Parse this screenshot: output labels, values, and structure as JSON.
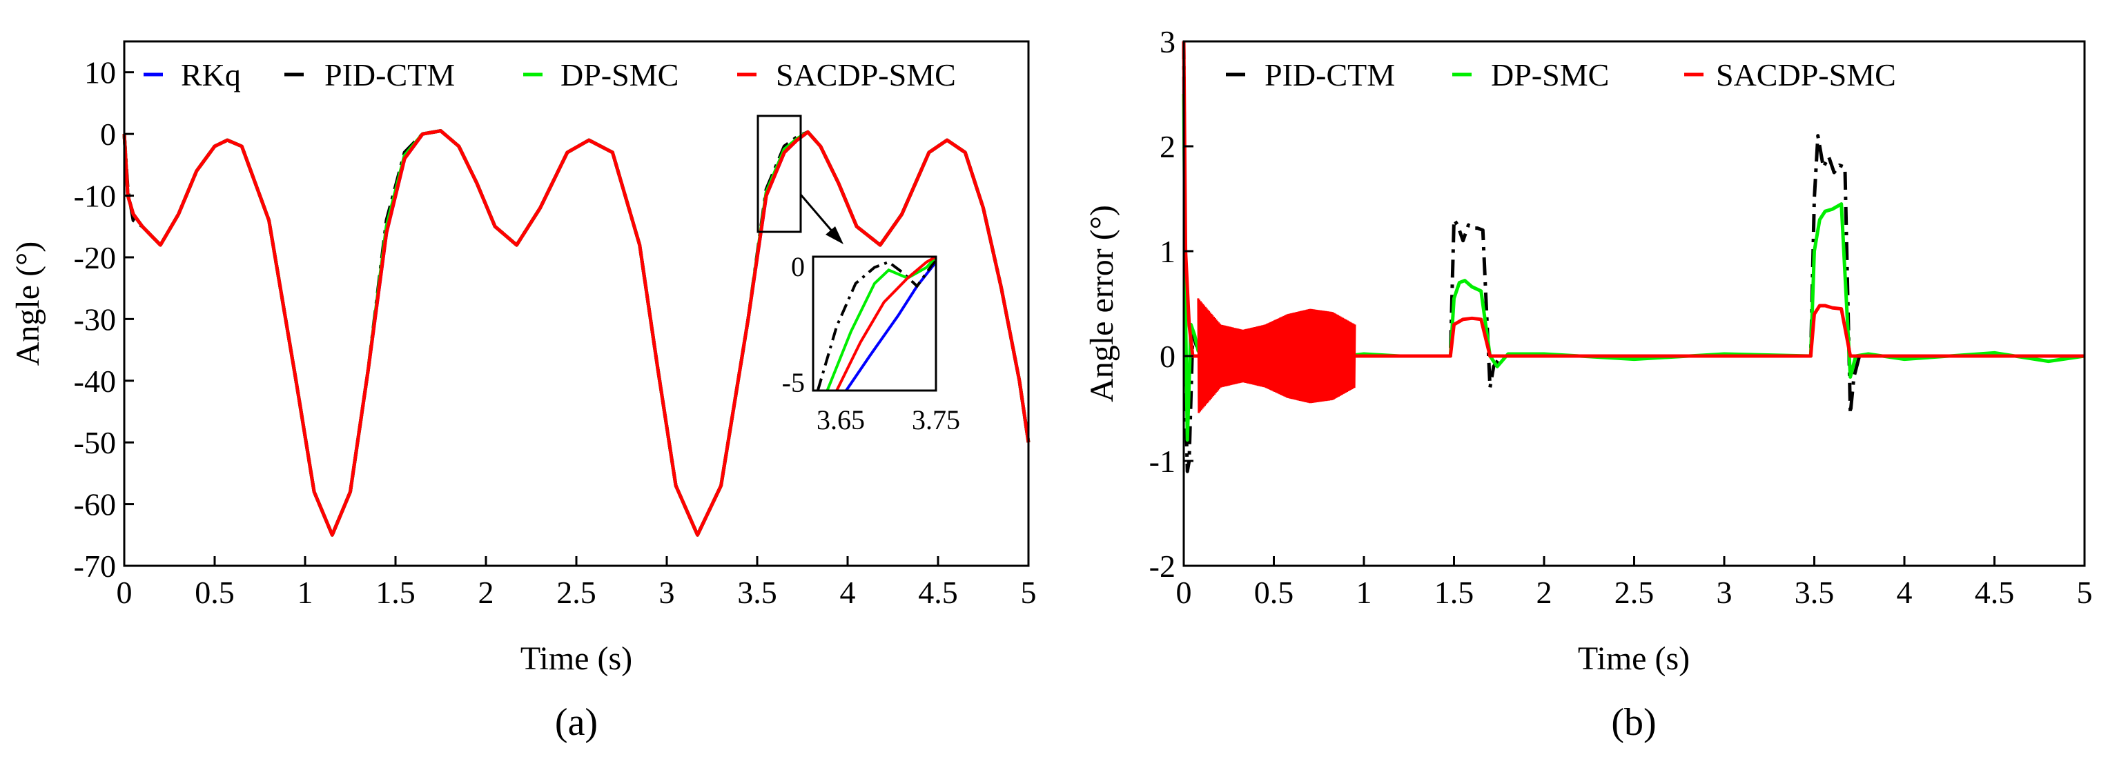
{
  "chart_data": [
    {
      "type": "line",
      "panel_label": "(a)",
      "xlabel": "Time (s)",
      "ylabel": "Angle (°)",
      "xlim": [
        0,
        5
      ],
      "ylim": [
        -70,
        15
      ],
      "xticks": [
        0,
        0.5,
        1,
        1.5,
        2,
        2.5,
        3,
        3.5,
        4,
        4.5,
        5
      ],
      "xtick_labels": [
        "0",
        "0.5",
        "1",
        "1.5",
        "2",
        "2.5",
        "3",
        "3.5",
        "4",
        "4.5",
        "5"
      ],
      "yticks": [
        10,
        0,
        -10,
        -20,
        -30,
        -40,
        -50,
        -60,
        -70
      ],
      "ytick_labels": [
        "10",
        "0",
        "-10",
        "-20",
        "-30",
        "-40",
        "-50",
        "-60",
        "-70"
      ],
      "legend_position": "top",
      "grid": false,
      "series": [
        {
          "name": "RKq",
          "color": "#0000ff",
          "dash": "solid",
          "x": [
            0,
            0.02,
            0.05,
            0.1,
            0.2,
            0.3,
            0.4,
            0.5,
            0.57,
            0.65,
            0.8,
            0.95,
            1.05,
            1.15,
            1.25,
            1.35,
            1.45,
            1.55,
            1.65,
            1.75,
            1.85,
            1.95,
            2.05,
            2.17,
            2.3,
            2.45,
            2.57,
            2.7,
            2.85,
            2.95,
            3.05,
            3.17,
            3.3,
            3.45,
            3.55,
            3.65,
            3.72,
            3.78,
            3.85,
            3.95,
            4.05,
            4.18,
            4.3,
            4.45,
            4.55,
            4.65,
            4.75,
            4.85,
            4.95,
            5.0
          ],
          "y": [
            0,
            -10,
            -13,
            -15,
            -18,
            -13,
            -6,
            -2,
            -1,
            -2,
            -14,
            -40,
            -58,
            -65,
            -58,
            -38,
            -16,
            -4,
            0,
            0.5,
            -2,
            -8,
            -15,
            -18,
            -12,
            -3,
            -1,
            -3,
            -18,
            -38,
            -57,
            -65,
            -57,
            -30,
            -10,
            -3,
            -1,
            0.3,
            -2,
            -8,
            -15,
            -18,
            -13,
            -3,
            -1,
            -3,
            -12,
            -25,
            -40,
            -50
          ]
        },
        {
          "name": "PID-CTM",
          "color": "#000000",
          "dash": "dashdot",
          "x": [
            0,
            0.02,
            0.05,
            0.1,
            0.2,
            0.3,
            0.4,
            0.5,
            0.57,
            0.65,
            0.8,
            0.95,
            1.05,
            1.15,
            1.25,
            1.35,
            1.45,
            1.55,
            1.65,
            1.75,
            1.85,
            1.95,
            2.05,
            2.17,
            2.3,
            2.45,
            2.57,
            2.7,
            2.85,
            2.95,
            3.05,
            3.17,
            3.3,
            3.45,
            3.55,
            3.65,
            3.72,
            3.78,
            3.85,
            3.95,
            4.05,
            4.18,
            4.3,
            4.45,
            4.55,
            4.65,
            4.75,
            4.85,
            4.95,
            5.0
          ],
          "y": [
            0,
            -9,
            -14,
            -15,
            -18,
            -13,
            -6,
            -2,
            -1,
            -2,
            -14,
            -40,
            -58,
            -65,
            -58,
            -38,
            -14,
            -3,
            0,
            0.5,
            -2,
            -8,
            -15,
            -18,
            -12,
            -3,
            -1,
            -3,
            -18,
            -38,
            -57,
            -65,
            -57,
            -30,
            -9,
            -2,
            -0.5,
            0.3,
            -2,
            -8,
            -15,
            -18,
            -13,
            -3,
            -1,
            -3,
            -12,
            -25,
            -40,
            -50
          ]
        },
        {
          "name": "DP-SMC",
          "color": "#00ee00",
          "dash": "solid",
          "x": [
            0,
            0.02,
            0.05,
            0.1,
            0.2,
            0.3,
            0.4,
            0.5,
            0.57,
            0.65,
            0.8,
            0.95,
            1.05,
            1.15,
            1.25,
            1.35,
            1.45,
            1.55,
            1.65,
            1.75,
            1.85,
            1.95,
            2.05,
            2.17,
            2.3,
            2.45,
            2.57,
            2.7,
            2.85,
            2.95,
            3.05,
            3.17,
            3.3,
            3.45,
            3.55,
            3.65,
            3.72,
            3.78,
            3.85,
            3.95,
            4.05,
            4.18,
            4.3,
            4.45,
            4.55,
            4.65,
            4.75,
            4.85,
            4.95,
            5.0
          ],
          "y": [
            0,
            -10,
            -13,
            -15,
            -18,
            -13,
            -6,
            -2,
            -1,
            -2,
            -14,
            -40,
            -58,
            -65,
            -58,
            -38,
            -15,
            -3.5,
            0,
            0.5,
            -2,
            -8,
            -15,
            -18,
            -12,
            -3,
            -1,
            -3,
            -18,
            -38,
            -57,
            -65,
            -57,
            -30,
            -9.5,
            -2.5,
            -0.8,
            0.3,
            -2,
            -8,
            -15,
            -18,
            -13,
            -3,
            -1,
            -3,
            -12,
            -25,
            -40,
            -50
          ]
        },
        {
          "name": "SACDP-SMC",
          "color": "#ff0000",
          "dash": "solid",
          "x": [
            0,
            0.02,
            0.05,
            0.1,
            0.2,
            0.3,
            0.4,
            0.5,
            0.57,
            0.65,
            0.8,
            0.95,
            1.05,
            1.15,
            1.25,
            1.35,
            1.45,
            1.55,
            1.65,
            1.75,
            1.85,
            1.95,
            2.05,
            2.17,
            2.3,
            2.45,
            2.57,
            2.7,
            2.85,
            2.95,
            3.05,
            3.17,
            3.3,
            3.45,
            3.55,
            3.65,
            3.72,
            3.78,
            3.85,
            3.95,
            4.05,
            4.18,
            4.3,
            4.45,
            4.55,
            4.65,
            4.75,
            4.85,
            4.95,
            5.0
          ],
          "y": [
            0,
            -10,
            -13,
            -15,
            -18,
            -13,
            -6,
            -2,
            -1,
            -2,
            -14,
            -40,
            -58,
            -65,
            -58,
            -38,
            -16,
            -4,
            0,
            0.5,
            -2,
            -8,
            -15,
            -18,
            -12,
            -3,
            -1,
            -3,
            -18,
            -38,
            -57,
            -65,
            -57,
            -30,
            -10,
            -3,
            -1,
            0.3,
            -2,
            -8,
            -15,
            -18,
            -13,
            -3,
            -1,
            -3,
            -12,
            -25,
            -40,
            -50
          ]
        }
      ],
      "inset": {
        "xlim": [
          3.62,
          3.75
        ],
        "ylim": [
          -5,
          0
        ],
        "xtick_labels": [
          "3.65",
          "3.75"
        ],
        "xticks": [
          3.65,
          3.75
        ],
        "ytick_labels": [
          "0",
          "-5"
        ],
        "yticks": [
          0,
          -5
        ],
        "zoom_box_x": [
          3.5,
          3.75
        ],
        "zoom_box_y": [
          -17,
          2
        ],
        "series": [
          {
            "name": "RKq",
            "x": [
              3.655,
              3.68,
              3.71,
              3.73,
              3.75
            ],
            "y": [
              -5,
              -3.7,
              -2.2,
              -1.1,
              -0.2
            ]
          },
          {
            "name": "PID-CTM",
            "x": [
              3.625,
              3.645,
              3.665,
              3.685,
              3.7,
              3.715,
              3.73,
              3.75
            ],
            "y": [
              -5,
              -2.6,
              -1.0,
              -0.4,
              -0.2,
              -0.6,
              -1.1,
              -0.1
            ]
          },
          {
            "name": "DP-SMC",
            "x": [
              3.635,
              3.66,
              3.685,
              3.7,
              3.72,
              3.74,
              3.75
            ],
            "y": [
              -5,
              -2.8,
              -1.0,
              -0.5,
              -0.8,
              -0.4,
              0
            ]
          },
          {
            "name": "SACDP-SMC",
            "x": [
              3.645,
              3.67,
              3.695,
              3.72,
              3.74,
              3.75
            ],
            "y": [
              -5,
              -3.2,
              -1.7,
              -0.8,
              -0.2,
              0
            ]
          }
        ]
      }
    },
    {
      "type": "line",
      "panel_label": "(b)",
      "xlabel": "Time (s)",
      "ylabel": "Angle error (°)",
      "xlim": [
        0,
        5
      ],
      "ylim": [
        -2,
        3
      ],
      "xticks": [
        0,
        0.5,
        1,
        1.5,
        2,
        2.5,
        3,
        3.5,
        4,
        4.5,
        5
      ],
      "xtick_labels": [
        "0",
        "0.5",
        "1",
        "1.5",
        "2",
        "2.5",
        "3",
        "3.5",
        "4",
        "4.5",
        "5"
      ],
      "yticks": [
        3,
        2,
        1,
        0,
        -1,
        -2
      ],
      "ytick_labels": [
        "3",
        "2",
        "1",
        "0",
        "-1",
        "-2"
      ],
      "legend_position": "top",
      "grid": false,
      "series": [
        {
          "name": "PID-CTM",
          "color": "#000000",
          "dash": "dashdot",
          "x": [
            0,
            0.005,
            0.01,
            0.02,
            0.03,
            0.05,
            0.07,
            0.1,
            0.15,
            0.2,
            0.5,
            1.0,
            1.48,
            1.5,
            1.52,
            1.55,
            1.58,
            1.6,
            1.63,
            1.66,
            1.7,
            1.72,
            1.76,
            1.8,
            2.5,
            3.0,
            3.48,
            3.5,
            3.52,
            3.55,
            3.58,
            3.61,
            3.64,
            3.67,
            3.7,
            3.72,
            3.75,
            3.8,
            4.5,
            5.0
          ],
          "y": [
            3.0,
            1.5,
            -0.4,
            -1.1,
            -1.0,
            0.2,
            0.1,
            0.02,
            0.0,
            0.0,
            0.0,
            0.0,
            0.0,
            1.3,
            1.25,
            1.1,
            1.25,
            1.22,
            1.22,
            1.2,
            -0.3,
            -0.1,
            0.0,
            0.0,
            0.0,
            0.0,
            0.0,
            1.5,
            2.1,
            1.8,
            1.9,
            1.75,
            1.82,
            1.8,
            -0.55,
            -0.2,
            0.0,
            0.0,
            0.0,
            0.0
          ]
        },
        {
          "name": "DP-SMC",
          "color": "#00ee00",
          "dash": "solid",
          "x": [
            0,
            0.01,
            0.02,
            0.04,
            0.06,
            0.08,
            0.1,
            0.15,
            0.2,
            0.4,
            0.6,
            0.8,
            1.0,
            1.2,
            1.48,
            1.5,
            1.53,
            1.56,
            1.6,
            1.65,
            1.7,
            1.74,
            1.8,
            2.0,
            2.5,
            3.0,
            3.48,
            3.5,
            3.53,
            3.56,
            3.6,
            3.65,
            3.7,
            3.73,
            3.8,
            4.0,
            4.5,
            4.8,
            5.0
          ],
          "y": [
            2.5,
            0.4,
            -0.8,
            0.3,
            0.2,
            0.05,
            0.0,
            0.0,
            0.02,
            -0.02,
            0.02,
            -0.02,
            0.02,
            0.0,
            0.0,
            0.55,
            0.7,
            0.72,
            0.66,
            0.62,
            0.0,
            -0.1,
            0.02,
            0.02,
            -0.03,
            0.02,
            0.0,
            1.0,
            1.3,
            1.38,
            1.4,
            1.45,
            -0.2,
            0.0,
            0.02,
            -0.03,
            0.03,
            -0.05,
            0.0
          ]
        },
        {
          "name": "SACDP-SMC",
          "color": "#ff0000",
          "dash": "solid",
          "x": [
            0,
            0.01,
            0.03,
            0.05,
            0.1,
            0.15,
            0.2,
            0.3,
            0.4,
            0.5,
            0.6,
            0.7,
            0.8,
            0.9,
            0.95,
            1.0,
            1.48,
            1.5,
            1.55,
            1.6,
            1.65,
            1.7,
            1.75,
            1.8,
            3.48,
            3.5,
            3.53,
            3.56,
            3.6,
            3.65,
            3.7,
            3.75,
            3.8,
            5.0
          ],
          "y": [
            3.0,
            1.0,
            0.3,
            0.0,
            0.0,
            0.0,
            0.0,
            0.0,
            0.0,
            0.0,
            0.0,
            0.0,
            0.0,
            0.0,
            0.0,
            0.0,
            0.0,
            0.3,
            0.35,
            0.36,
            0.35,
            0.0,
            0.0,
            0.0,
            0.0,
            0.4,
            0.48,
            0.48,
            0.46,
            0.45,
            0.0,
            0.0,
            0.0,
            0.0
          ]
        }
      ],
      "oscillation_band": {
        "series": "SACDP-SMC",
        "x_range": [
          0.08,
          0.95
        ],
        "amplitude": [
          0.55,
          0.3,
          0.25,
          0.3,
          0.4,
          0.45,
          0.42,
          0.3
        ],
        "center": 0.0
      }
    }
  ]
}
